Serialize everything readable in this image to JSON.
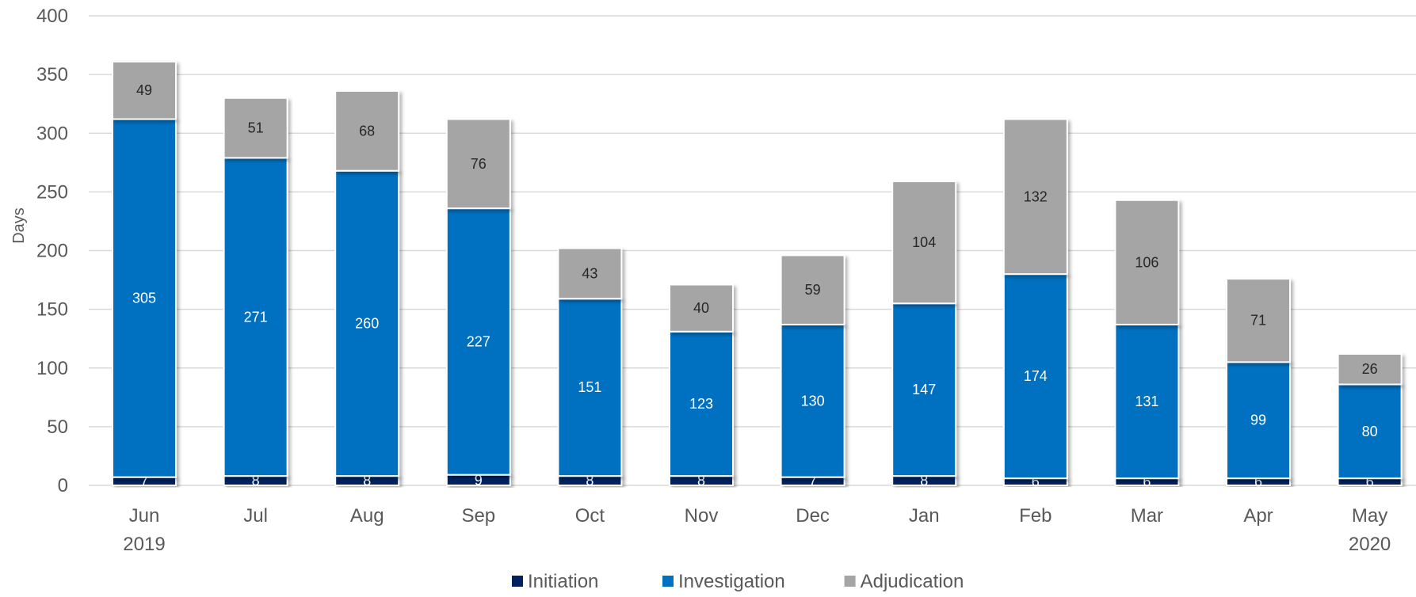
{
  "chart_data": {
    "type": "bar",
    "stacked": true,
    "title": "",
    "xlabel": "",
    "ylabel": "Days",
    "ylim": [
      0,
      400
    ],
    "yticks": [
      0,
      50,
      100,
      150,
      200,
      250,
      300,
      350,
      400
    ],
    "grid": true,
    "legend_position": "bottom",
    "categories": [
      [
        "Jun",
        "2019"
      ],
      [
        "Jul"
      ],
      [
        "Aug"
      ],
      [
        "Sep"
      ],
      [
        "Oct"
      ],
      [
        "Nov"
      ],
      [
        "Dec"
      ],
      [
        "Jan"
      ],
      [
        "Feb"
      ],
      [
        "Mar"
      ],
      [
        "Apr"
      ],
      [
        "May",
        "2020"
      ]
    ],
    "series": [
      {
        "name": "Initiation",
        "color": "#002060",
        "label_color": "#ffffff",
        "values": [
          7,
          8,
          8,
          9,
          8,
          8,
          7,
          8,
          6,
          6,
          6,
          6
        ]
      },
      {
        "name": "Investigation",
        "color": "#0070C0",
        "label_color": "#ffffff",
        "values": [
          305,
          271,
          260,
          227,
          151,
          123,
          130,
          147,
          174,
          131,
          99,
          80
        ]
      },
      {
        "name": "Adjudication",
        "color": "#A5A5A5",
        "label_color": "#262626",
        "values": [
          49,
          51,
          68,
          76,
          43,
          40,
          59,
          104,
          132,
          106,
          71,
          26
        ]
      }
    ]
  }
}
